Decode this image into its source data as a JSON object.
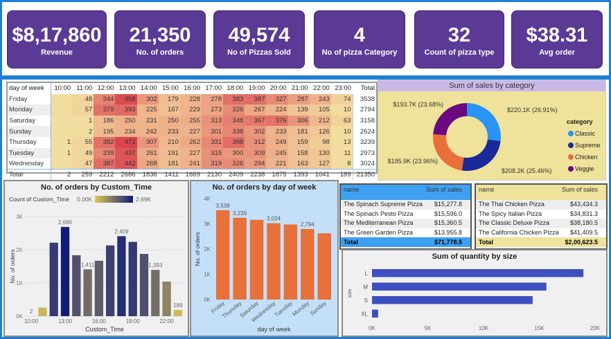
{
  "kpis": [
    {
      "value": "$8,17,860",
      "label": "Revenue"
    },
    {
      "value": "21,350",
      "label": "No. of orders"
    },
    {
      "value": "49,574",
      "label": "No of Pizzas Sold"
    },
    {
      "value": "4",
      "label": "No of pizza Category"
    },
    {
      "value": "32",
      "label": "Count of pizza type"
    },
    {
      "value": "$38.31",
      "label": "Avg order"
    }
  ],
  "matrix": {
    "headers": [
      "day of week",
      "10:00",
      "11:00",
      "12:00",
      "13:00",
      "14:00",
      "15:00",
      "16:00",
      "17:00",
      "18:00",
      "19:00",
      "20:00",
      "21:00",
      "22:00",
      "23:00",
      "Total"
    ],
    "rows": [
      [
        "Friday",
        "",
        "48",
        "344",
        "458",
        "302",
        "179",
        "228",
        "278",
        "383",
        "387",
        "327",
        "287",
        "243",
        "74",
        "3538"
      ],
      [
        "Monday",
        "",
        "57",
        "379",
        "393",
        "225",
        "167",
        "229",
        "273",
        "326",
        "267",
        "224",
        "139",
        "105",
        "10",
        "2794"
      ],
      [
        "Saturday",
        "",
        "1",
        "186",
        "250",
        "231",
        "250",
        "255",
        "313",
        "348",
        "367",
        "376",
        "306",
        "212",
        "63",
        "3158"
      ],
      [
        "Sunday",
        "",
        "2",
        "195",
        "234",
        "242",
        "233",
        "227",
        "301",
        "338",
        "302",
        "233",
        "181",
        "126",
        "10",
        "2624"
      ],
      [
        "Thursday",
        "1",
        "55",
        "382",
        "472",
        "307",
        "210",
        "262",
        "331",
        "388",
        "312",
        "249",
        "159",
        "98",
        "13",
        "3239"
      ],
      [
        "Tuesday",
        "1",
        "49",
        "339",
        "437",
        "261",
        "191",
        "227",
        "315",
        "300",
        "309",
        "245",
        "158",
        "130",
        "11",
        "2973"
      ],
      [
        "Wednesday",
        "",
        "47",
        "387",
        "442",
        "268",
        "181",
        "241",
        "319",
        "326",
        "294",
        "221",
        "163",
        "127",
        "8",
        "3024"
      ]
    ],
    "total": [
      "Total",
      "2",
      "259",
      "2212",
      "2686",
      "1836",
      "1411",
      "1669",
      "2130",
      "2409",
      "2238",
      "1875",
      "1393",
      "1041",
      "189",
      "21350"
    ]
  },
  "chart_data": [
    {
      "type": "pie",
      "title": "Sum of sales by category",
      "legend_title": "category",
      "legend_position": "right",
      "slices": [
        {
          "name": "Classic",
          "value": 220.1,
          "label": "$220.1K (26.91%)",
          "color": "#2a93f5"
        },
        {
          "name": "Supreme",
          "value": 208.2,
          "label": "$208.2K (25.46%)",
          "color": "#1a2a9a"
        },
        {
          "name": "Chicken",
          "value": 195.9,
          "label": "$195.9K (23.96%)",
          "color": "#e8703a"
        },
        {
          "name": "Veggie",
          "value": 193.7,
          "label": "$193.7K (23.68%)",
          "color": "#6a0a80"
        }
      ]
    },
    {
      "type": "bar",
      "title": "No. of orders by Custom_Time",
      "legend_label": "Count of Custom_Time",
      "legend_min": "0.00K",
      "legend_max": "2.69K",
      "categories": [
        "10:00",
        "11:00",
        "12:00",
        "13:00",
        "14:00",
        "15:00",
        "16:00",
        "17:00",
        "18:00",
        "19:00",
        "20:00",
        "21:00",
        "22:00",
        "23:00"
      ],
      "values": [
        2,
        259,
        2212,
        2686,
        1836,
        1411,
        1669,
        2130,
        2409,
        2238,
        1875,
        1393,
        1041,
        189
      ],
      "data_labels": {
        "0": "2",
        "3": "2,686",
        "5": "1,411",
        "8": "2,409",
        "11": "1,393",
        "13": "189"
      },
      "xticks": [
        "10:00",
        "13:00",
        "16:00",
        "19:00",
        "22:00"
      ],
      "xlabel": "Custom_Time",
      "ylabel": "No. of orders",
      "ylim": [
        0,
        3000
      ],
      "yticks": [
        "0K",
        "1K",
        "2K",
        "3K"
      ],
      "grid": true
    },
    {
      "type": "bar",
      "title": "No. of orders by day of week",
      "categories": [
        "Friday",
        "Thursday",
        "Saturday",
        "Wednesday",
        "Tuesday",
        "Monday",
        "Sunday"
      ],
      "values": [
        3538,
        3239,
        3158,
        3024,
        2973,
        2794,
        2624
      ],
      "data_labels": {
        "0": "3,538",
        "1": "3,239",
        "3": "3,024",
        "5": "2,794"
      },
      "xlabel": "day of week",
      "ylabel": "No. of orders",
      "ylim": [
        0,
        4000
      ],
      "yticks": [
        "0K",
        "1K",
        "2K",
        "3K",
        "4K"
      ],
      "color": "#e8703a"
    },
    {
      "type": "bar",
      "orientation": "horizontal",
      "title": "Sum of quantity by size",
      "categories": [
        "L",
        "M",
        "S",
        "XL"
      ],
      "values": [
        18956,
        15635,
        14403,
        552
      ],
      "ylabel": "size",
      "xlim": [
        0,
        20000
      ],
      "xticks": [
        "0K",
        "5K",
        "10K",
        "15K",
        "20K"
      ],
      "color": "#3e4fbf"
    }
  ],
  "table_left": {
    "col1": "name",
    "col2": "Sum of sales",
    "rows": [
      [
        "The Spinach Supreme Pizza",
        "$15,277.8"
      ],
      [
        "The Spinach Pesto Pizza",
        "$15,596.0"
      ],
      [
        "The Mediterranean Pizza",
        "$15,360.5"
      ],
      [
        "The Green Garden Pizza",
        "$13,955.8"
      ]
    ],
    "total": [
      "Total",
      "$71,778.5"
    ]
  },
  "table_right": {
    "col1": "name",
    "col2": "Sum of sales",
    "rows": [
      [
        "The Thai Chicken Pizza",
        "$43,434.3"
      ],
      [
        "The Spicy Italian Pizza",
        "$34,831.3"
      ],
      [
        "The Classic Deluxe Pizza",
        "$38,180.5"
      ],
      [
        "The California Chicken Pizza",
        "$41,409.5"
      ]
    ],
    "total": [
      "Total",
      "$2,00,623.5"
    ]
  }
}
